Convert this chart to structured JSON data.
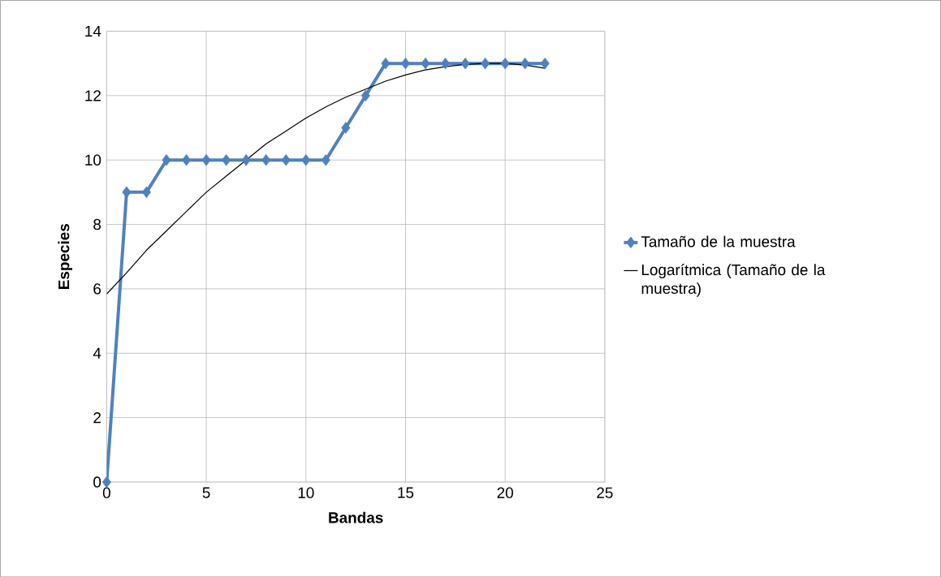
{
  "chart_data": {
    "type": "line",
    "xlabel": "Bandas",
    "ylabel": "Especies",
    "x": [
      0,
      1,
      2,
      3,
      4,
      5,
      6,
      7,
      8,
      9,
      10,
      11,
      12,
      13,
      14,
      15,
      16,
      17,
      18,
      19,
      20,
      21,
      22
    ],
    "series": [
      {
        "name": "Tamaño de la muestra",
        "color": "#4f81bd",
        "marker": "diamond",
        "values": [
          0,
          9,
          9,
          10,
          10,
          10,
          10,
          10,
          10,
          10,
          10,
          10,
          11,
          12,
          13,
          13,
          13,
          13,
          13,
          13,
          13,
          13,
          13
        ]
      },
      {
        "name": "Logarítmica (Tamaño de la muestra)",
        "color": "#000000",
        "marker": "none",
        "x": [
          0,
          1,
          2,
          3,
          4,
          5,
          6,
          7,
          8,
          9,
          10,
          11,
          12,
          13,
          14,
          15,
          16,
          17,
          18,
          19,
          20,
          21,
          22
        ],
        "values": [
          5.84,
          6.5,
          7.2,
          7.8,
          8.4,
          9.0,
          9.5,
          10.0,
          10.5,
          10.9,
          11.3,
          11.65,
          11.95,
          12.2,
          12.45,
          12.64,
          12.8,
          12.9,
          12.97,
          13.0,
          13.0,
          12.95,
          12.85
        ]
      }
    ],
    "xlim": [
      0,
      25
    ],
    "ylim": [
      0,
      14
    ],
    "xticks": [
      0,
      5,
      10,
      15,
      20,
      25
    ],
    "yticks": [
      0,
      2,
      4,
      6,
      8,
      10,
      12,
      14
    ],
    "grid": true,
    "legend": "right"
  }
}
